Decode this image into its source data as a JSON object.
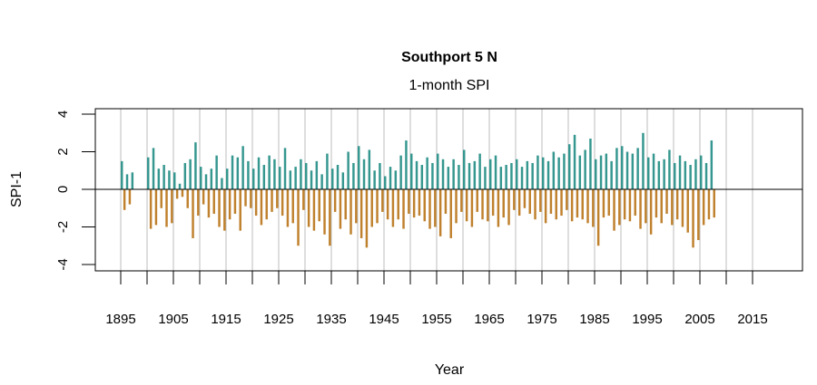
{
  "chart_data": {
    "type": "bar",
    "title": "Southport 5 N",
    "subtitle": "1-month SPI",
    "xlabel": "Year",
    "ylabel": "SPI-1",
    "xlim": [
      1890,
      2025
    ],
    "ylim": [
      -4,
      4
    ],
    "x_ticks": [
      1895,
      1905,
      1915,
      1925,
      1935,
      1945,
      1955,
      1965,
      1975,
      1985,
      1995,
      2005,
      2015
    ],
    "x_tick_marks_every": 5,
    "y_ticks": [
      -4,
      -2,
      0,
      2,
      4
    ],
    "vertical_grid": true,
    "grid_every_years": 5,
    "x_start": 1895.0,
    "x_step": 0.5,
    "colors": {
      "positive": "#35978f",
      "negative": "#bf812d",
      "grid": "#bebebe",
      "zero_line": "#000000"
    },
    "values": [
      1.5,
      -1.1,
      0.8,
      -0.8,
      0.9,
      null,
      null,
      null,
      null,
      null,
      1.7,
      -2.1,
      2.2,
      -1.9,
      1.1,
      -1.0,
      1.3,
      -2.0,
      1.0,
      -1.8,
      0.9,
      -0.5,
      0.3,
      -0.4,
      1.4,
      -1.0,
      1.6,
      -2.6,
      2.5,
      -1.4,
      1.2,
      -0.8,
      0.8,
      -1.5,
      1.1,
      -1.3,
      1.8,
      -2.0,
      0.6,
      -2.2,
      1.1,
      -1.6,
      1.8,
      -1.3,
      1.7,
      -2.2,
      2.3,
      -0.9,
      1.5,
      -1.0,
      1.1,
      -1.4,
      1.7,
      -1.9,
      1.3,
      -1.6,
      1.8,
      -1.2,
      1.6,
      -1.0,
      1.2,
      -1.4,
      2.2,
      -2.0,
      1.0,
      -1.8,
      1.2,
      -3.0,
      1.6,
      -1.1,
      1.4,
      -2.0,
      1.0,
      -2.2,
      1.5,
      -1.7,
      0.8,
      -2.4,
      1.9,
      -3.0,
      1.1,
      -1.2,
      1.3,
      -2.1,
      0.9,
      -1.6,
      2.0,
      -2.4,
      1.4,
      -1.8,
      2.3,
      -2.6,
      1.6,
      -3.1,
      2.1,
      -2.0,
      1.0,
      -1.8,
      1.4,
      -1.2,
      0.7,
      -1.6,
      1.2,
      -2.0,
      1.0,
      -1.6,
      1.8,
      -2.1,
      2.6,
      -1.3,
      1.9,
      -1.5,
      1.5,
      -1.4,
      1.3,
      -1.7,
      1.7,
      -2.1,
      1.4,
      -2.0,
      1.9,
      -2.5,
      1.6,
      -1.3,
      1.2,
      -2.6,
      1.6,
      -1.8,
      1.3,
      -1.2,
      2.1,
      -1.7,
      1.4,
      -2.0,
      1.5,
      -1.2,
      1.9,
      -1.6,
      1.2,
      -1.7,
      1.6,
      -1.4,
      1.8,
      -2.0,
      1.2,
      -1.5,
      1.3,
      -1.9,
      1.4,
      -1.1,
      1.6,
      -1.4,
      1.2,
      -1.0,
      1.5,
      -1.3,
      1.4,
      -1.6,
      1.8,
      -1.2,
      1.7,
      -1.8,
      1.5,
      -1.3,
      2.0,
      -1.6,
      1.7,
      -1.4,
      1.9,
      -1.1,
      2.4,
      -1.7,
      2.9,
      -1.5,
      1.8,
      -1.6,
      2.1,
      -1.8,
      2.7,
      -2.0,
      1.6,
      -3.0,
      1.8,
      -1.5,
      1.9,
      -1.4,
      1.5,
      -2.2,
      2.2,
      -1.9,
      2.3,
      -1.6,
      2.0,
      -1.7,
      1.9,
      -1.4,
      2.2,
      -2.1,
      3.0,
      -1.8,
      1.7,
      -2.4,
      1.9,
      -1.5,
      1.5,
      -1.8,
      1.6,
      -1.3,
      2.1,
      -1.9,
      1.4,
      -1.6,
      1.8,
      -2.0,
      1.5,
      -2.3,
      1.3,
      -3.1,
      1.6,
      -2.7,
      1.8,
      -1.9,
      1.4,
      -1.6,
      2.6,
      -1.5
    ]
  }
}
